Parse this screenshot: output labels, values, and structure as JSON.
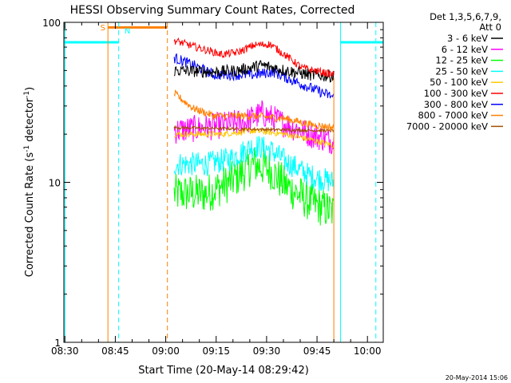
{
  "chart_data": {
    "type": "line",
    "title": "HESSI Observing Summary Count Rates, Corrected",
    "xlabel": "Start Time (20-May-14 08:29:42)",
    "ylabel": "Corrected Count Rate (s",
    "ylabel_sup1": "-1",
    "ylabel_mid": " detector",
    "ylabel_sup2": "-1",
    "ylabel_end": ")",
    "y_scale": "log",
    "ylim": [
      1,
      100
    ],
    "y_ticks": [
      {
        "value": 1,
        "label": "1"
      },
      {
        "value": 10,
        "label": "10"
      },
      {
        "value": 100,
        "label": "100"
      }
    ],
    "xlim_minutes": [
      -0.3,
      94.7
    ],
    "x_ticks": [
      {
        "value": 0,
        "label": "08:30"
      },
      {
        "value": 15,
        "label": "08:45"
      },
      {
        "value": 30,
        "label": "09:00"
      },
      {
        "value": 45,
        "label": "09:15"
      },
      {
        "value": 60,
        "label": "09:30"
      },
      {
        "value": 75,
        "label": "09:45"
      },
      {
        "value": 90,
        "label": "10:00"
      }
    ],
    "legend_title_1": "Det 1,3,5,6,7,9,",
    "legend_title_2": "Att 0",
    "legend_position": "top-right, outside plot",
    "series": [
      {
        "name": "3 - 6 keV",
        "color": "#000000",
        "start": 32.5,
        "end": 80,
        "profile": [
          [
            0,
            50
          ],
          [
            0.25,
            49
          ],
          [
            0.4,
            50
          ],
          [
            0.55,
            54
          ],
          [
            0.7,
            50
          ],
          [
            0.85,
            47
          ],
          [
            1,
            46
          ]
        ],
        "noise": 0.04
      },
      {
        "name": "6 - 12 keV",
        "color": "#ff00ff",
        "start": 32.5,
        "end": 80,
        "profile": [
          [
            0,
            21
          ],
          [
            0.2,
            22
          ],
          [
            0.45,
            24
          ],
          [
            0.55,
            27
          ],
          [
            0.7,
            23
          ],
          [
            0.85,
            20
          ],
          [
            1,
            18
          ]
        ],
        "noise": 0.09
      },
      {
        "name": "12 - 25 keV",
        "color": "#00ff00",
        "start": 32.5,
        "end": 80,
        "profile": [
          [
            0,
            8.5
          ],
          [
            0.2,
            8.5
          ],
          [
            0.35,
            10
          ],
          [
            0.5,
            13
          ],
          [
            0.6,
            12
          ],
          [
            0.7,
            9.5
          ],
          [
            0.85,
            7.5
          ],
          [
            1,
            6.5
          ]
        ],
        "noise": 0.13
      },
      {
        "name": "25 - 50 keV",
        "color": "#00ffff",
        "start": 32.5,
        "end": 80,
        "profile": [
          [
            0,
            13
          ],
          [
            0.2,
            13
          ],
          [
            0.35,
            14
          ],
          [
            0.5,
            17
          ],
          [
            0.6,
            16
          ],
          [
            0.7,
            13.5
          ],
          [
            0.85,
            11
          ],
          [
            1,
            10
          ]
        ],
        "noise": 0.08
      },
      {
        "name": "50 - 100 keV",
        "color": "#ffc800",
        "start": 32.5,
        "end": 80,
        "profile": [
          [
            0,
            20
          ],
          [
            0.3,
            20
          ],
          [
            0.5,
            21
          ],
          [
            0.7,
            20
          ],
          [
            0.85,
            18.5
          ],
          [
            1,
            17
          ]
        ],
        "noise": 0.02
      },
      {
        "name": "100 - 300 keV",
        "color": "#ff0000",
        "start": 32.5,
        "end": 80,
        "profile": [
          [
            0,
            77
          ],
          [
            0.18,
            68
          ],
          [
            0.3,
            63
          ],
          [
            0.4,
            65
          ],
          [
            0.5,
            72
          ],
          [
            0.6,
            73
          ],
          [
            0.7,
            62
          ],
          [
            0.8,
            52
          ],
          [
            1,
            47
          ]
        ],
        "noise": 0.025
      },
      {
        "name": "300 - 800 keV",
        "color": "#0000ff",
        "start": 32.5,
        "end": 80,
        "profile": [
          [
            0,
            60
          ],
          [
            0.12,
            54
          ],
          [
            0.25,
            47
          ],
          [
            0.5,
            47
          ],
          [
            0.62,
            49
          ],
          [
            0.75,
            43
          ],
          [
            0.88,
            38
          ],
          [
            1,
            34
          ]
        ],
        "noise": 0.035
      },
      {
        "name": "800 - 7000 keV",
        "color": "#ff8000",
        "start": 32.5,
        "end": 80,
        "profile": [
          [
            0,
            36
          ],
          [
            0.12,
            29
          ],
          [
            0.25,
            26
          ],
          [
            0.5,
            26
          ],
          [
            0.7,
            25
          ],
          [
            0.85,
            23
          ],
          [
            1,
            22
          ]
        ],
        "noise": 0.025
      },
      {
        "name": "7000 - 20000 keV",
        "color": "#a05000",
        "start": 32.5,
        "end": 80,
        "profile": [
          [
            0,
            22
          ],
          [
            1,
            21
          ]
        ],
        "noise": 0.01
      }
    ],
    "markers": [
      {
        "label": "S",
        "color": "#ff8000"
      },
      {
        "label": "N",
        "color": "#00ffff"
      }
    ],
    "footer_date": "20-May-2014 15:06"
  }
}
